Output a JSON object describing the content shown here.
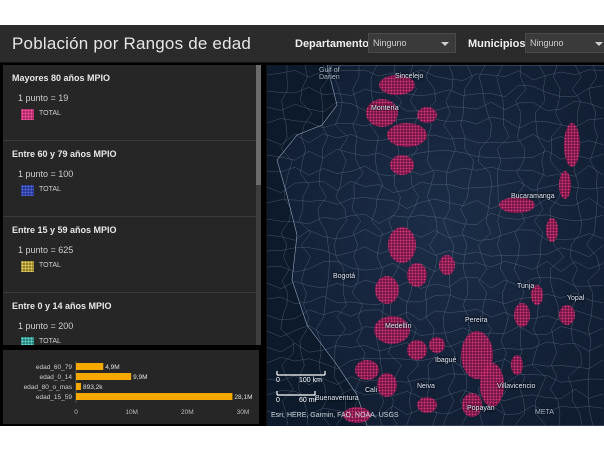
{
  "header": {
    "title": "Población por Rangos de edad",
    "departamento_label": "Departamento",
    "departamento_value": "Ninguno",
    "municipios_label": "Municipios",
    "municipios_value": "Ninguno"
  },
  "legend": {
    "sections": [
      {
        "title": "Mayores 80 años MPIO",
        "dot_value": "1 punto = 19",
        "total_label": "TOTAL",
        "color": "#b0246a"
      },
      {
        "title": "Entre 60 y 79 años MPIO",
        "dot_value": "1 punto = 100",
        "total_label": "TOTAL",
        "color": "#2a3ca8"
      },
      {
        "title": "Entre 15 y 59 años MPIO",
        "dot_value": "1 punto = 625",
        "total_label": "TOTAL",
        "color": "#c9b13a"
      },
      {
        "title": "Entre 0 y 14 años MPIO",
        "dot_value": "1 punto = 200",
        "total_label": "TOTAL",
        "color": "#2aa8a0"
      }
    ]
  },
  "chart_data": {
    "type": "bar",
    "orientation": "horizontal",
    "categories": [
      "edad_60_79",
      "edad_0_14",
      "edad_80_o_mas",
      "edad_15_59"
    ],
    "values": [
      4.9,
      9.9,
      0.8932,
      28.1
    ],
    "value_labels": [
      "4,9M",
      "9,9M",
      "893,2k",
      "28,1M"
    ],
    "xticks": [
      "0",
      "10M",
      "20M",
      "30M"
    ],
    "xlim": [
      0,
      30
    ],
    "bar_color": "#f5a800",
    "grid": false
  },
  "map": {
    "labels": {
      "gulf": "Gulf of\nDarien",
      "sincelejo": "Sincelejo",
      "monteria": "Montería",
      "bucaramanga": "Bucaramanga",
      "bogota": "Bogotá",
      "buenaventura": "Buenaventura",
      "villavicencio": "Villavicencio",
      "popayan": "Popayán",
      "neiva": "Neiva",
      "yopal": "Yopal",
      "cali": "Cali",
      "tunja": "Tunja",
      "medellin": "Medellín",
      "ibague": "Ibagué",
      "pereira": "Pereira",
      "meta": "META"
    },
    "scale_km_zero": "0",
    "scale_km": "100 km",
    "scale_mi_zero": "0",
    "scale_mi": "60 mi",
    "attribution": "Esri, HERE, Garmin, FAO, NOAA, USGS",
    "dot_color": "#e0245e",
    "boundary_color": "#c7cfdb",
    "water_color": "#0e1a2c"
  }
}
